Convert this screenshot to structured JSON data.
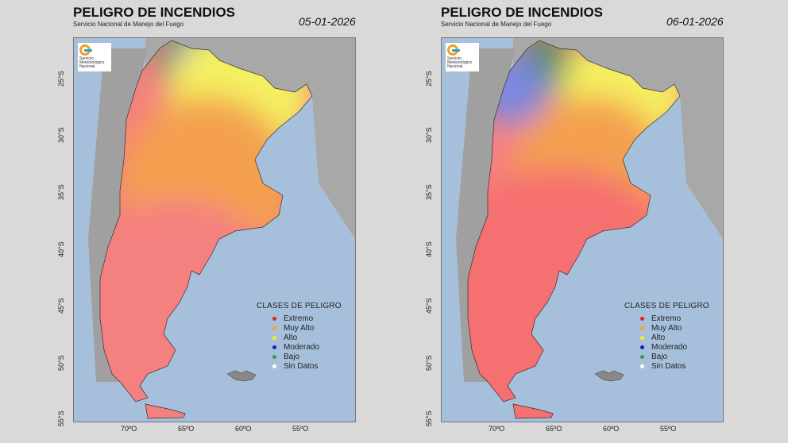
{
  "panels": [
    {
      "title": "PELIGRO DE INCENDIOS",
      "subtitle": "Servicio Nacional de Manejo del Fuego",
      "date": "05-01-2026",
      "logo_text": "Servicio Meteorológico Nacional"
    },
    {
      "title": "PELIGRO DE INCENDIOS",
      "subtitle": "Servicio Nacional de Manejo del Fuego",
      "date": "06-01-2026",
      "logo_text": "Servicio Meteorológico Nacional"
    }
  ],
  "latitude_labels": [
    "25°S",
    "30°S",
    "35°S",
    "40°S",
    "45°S",
    "50°S",
    "55°S"
  ],
  "longitude_labels": [
    "70ºO",
    "65ºO",
    "60ºO",
    "55ºO"
  ],
  "legend": {
    "title": "CLASES DE PELIGRO",
    "items": [
      {
        "label": "Extremo",
        "color": "#e8202a"
      },
      {
        "label": "Muy Alto",
        "color": "#f0a030"
      },
      {
        "label": "Alto",
        "color": "#f2f020"
      },
      {
        "label": "Moderado",
        "color": "#1020d0"
      },
      {
        "label": "Bajo",
        "color": "#30a040"
      },
      {
        "label": "Sin Datos",
        "color": "#ffffff"
      }
    ]
  }
}
